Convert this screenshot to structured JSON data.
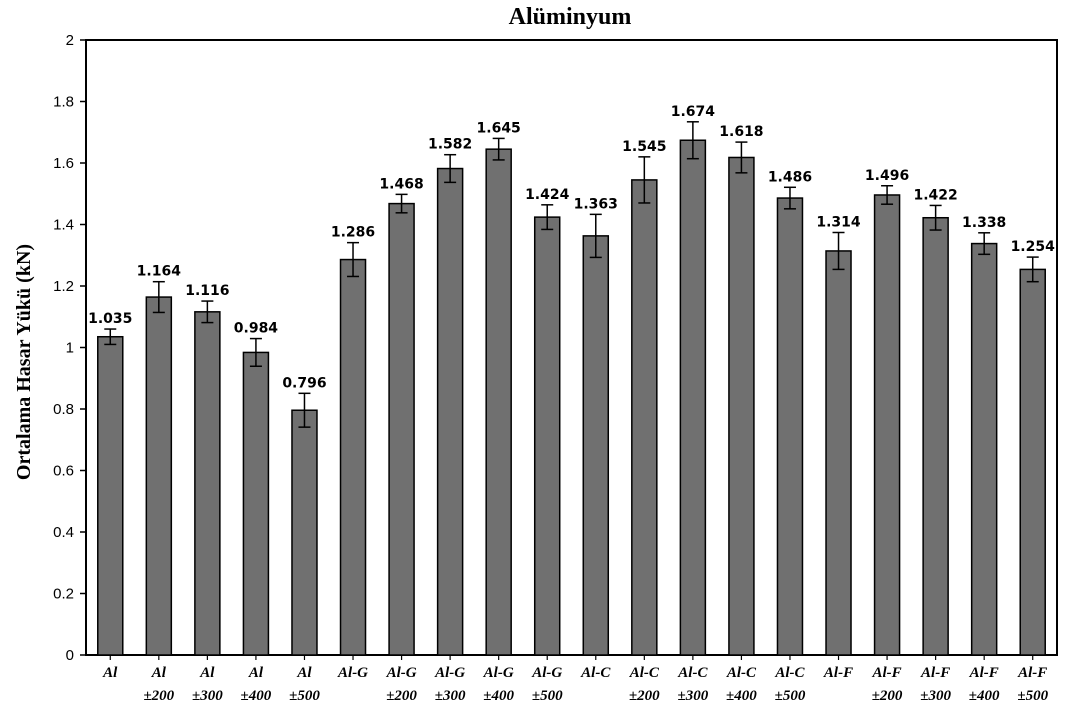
{
  "chart_data": {
    "type": "bar",
    "title": "Alüminyum",
    "ylabel": "Ortalama Hasar Yükü (kN)",
    "xlabel": "",
    "ylim": [
      0,
      2
    ],
    "yticks": [
      "0",
      "0.2",
      "0.4",
      "0.6",
      "0.8",
      "1",
      "1.2",
      "1.4",
      "1.6",
      "1.8",
      "2"
    ],
    "grid": false,
    "bar_color": "#707070",
    "categories": [
      [
        "Al",
        ""
      ],
      [
        "Al",
        "±200"
      ],
      [
        "Al",
        "±300"
      ],
      [
        "Al",
        "±400"
      ],
      [
        "Al",
        "±500"
      ],
      [
        "Al-G",
        ""
      ],
      [
        "Al-G",
        "±200"
      ],
      [
        "Al-G",
        "±300"
      ],
      [
        "Al-G",
        "±400"
      ],
      [
        "Al-G",
        "±500"
      ],
      [
        "Al-C",
        ""
      ],
      [
        "Al-C",
        "±200"
      ],
      [
        "Al-C",
        "±300"
      ],
      [
        "Al-C",
        "±400"
      ],
      [
        "Al-C",
        "±500"
      ],
      [
        "Al-F",
        ""
      ],
      [
        "Al-F",
        "±200"
      ],
      [
        "Al-F",
        "±300"
      ],
      [
        "Al-F",
        "±400"
      ],
      [
        "Al-F",
        "±500"
      ]
    ],
    "values": [
      1.035,
      1.164,
      1.116,
      0.984,
      0.796,
      1.286,
      1.468,
      1.582,
      1.645,
      1.424,
      1.363,
      1.545,
      1.674,
      1.618,
      1.486,
      1.314,
      1.496,
      1.422,
      1.338,
      1.254
    ],
    "value_labels": [
      "1.035",
      "1.164",
      "1.116",
      "0.984",
      "0.796",
      "1.286",
      "1.468",
      "1.582",
      "1.645",
      "1.424",
      "1.363",
      "1.545",
      "1.674",
      "1.618",
      "1.486",
      "1.314",
      "1.496",
      "1.422",
      "1.338",
      "1.254"
    ],
    "errors": [
      0.025,
      0.05,
      0.035,
      0.045,
      0.055,
      0.055,
      0.03,
      0.045,
      0.035,
      0.04,
      0.07,
      0.075,
      0.06,
      0.05,
      0.035,
      0.06,
      0.03,
      0.04,
      0.035,
      0.04
    ]
  }
}
